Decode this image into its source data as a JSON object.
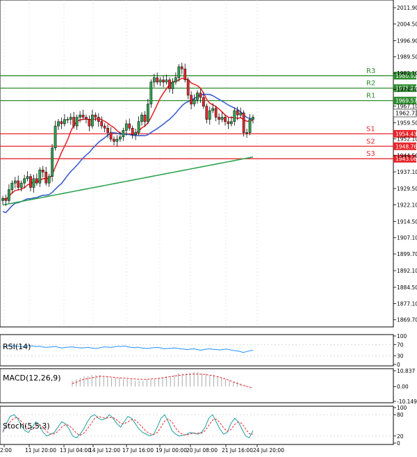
{
  "chart_data": {
    "type": "candlestick",
    "price_axis": {
      "ticks": [
        "2011.90",
        "2004.50",
        "1996.90",
        "1989.50",
        "1982.10",
        "1974.70",
        "1967.10",
        "1959.50",
        "1952.10",
        "1944.50",
        "1937.10",
        "1929.50",
        "1922.10",
        "1914.50",
        "1907.10",
        "1899.70",
        "1892.10",
        "1884.50",
        "1877.10",
        "1869.70"
      ],
      "range": [
        1867.4,
        2013.5
      ]
    },
    "time_axis": {
      "labels": [
        "2:00",
        "11 Jul 20:00",
        "13 Jul 04:00",
        "14 Jul 12:00",
        "17 Jul 16:00",
        "19 Jul 00:00",
        "20 Jul 08:00",
        "21 Jul 16:00",
        "24 Jul 20:00"
      ]
    },
    "current_price": "1962.73",
    "levels": [
      {
        "name": "R3",
        "price": "1980.92",
        "value": 1980.92,
        "color": "#2e8b2e"
      },
      {
        "name": "R2",
        "price": "1975.24",
        "value": 1975.24,
        "color": "#2e8b2e"
      },
      {
        "name": "R1",
        "price": "1969.57",
        "value": 1969.57,
        "color": "#2e8b2e"
      },
      {
        "name": "S1",
        "price": "1954.43",
        "value": 1954.43,
        "color": "#e8262b"
      },
      {
        "name": "S2",
        "price": "1948.76",
        "value": 1948.76,
        "color": "#e8262b"
      },
      {
        "name": "S3",
        "price": "1943.08",
        "value": 1943.08,
        "color": "#e8262b"
      }
    ],
    "closes": [
      1925,
      1924,
      1929,
      1932,
      1933,
      1930,
      1932,
      1934,
      1935,
      1930,
      1934,
      1932,
      1938,
      1937,
      1932,
      1935,
      1948,
      1958,
      1960,
      1959,
      1961,
      1961,
      1962,
      1958,
      1962,
      1963,
      1962,
      1961,
      1958,
      1963,
      1962,
      1960,
      1958,
      1957,
      1955,
      1952,
      1951,
      1952,
      1953,
      1956,
      1959,
      1957,
      1954,
      1955,
      1960,
      1963,
      1960,
      1968,
      1978,
      1980,
      1978,
      1979,
      1978,
      1979,
      1975,
      1978,
      1980,
      1985,
      1984,
      1979,
      1972,
      1968,
      1970,
      1973,
      1971,
      1967,
      1961,
      1965,
      1966,
      1962,
      1961,
      1962,
      1960,
      1959,
      1960,
      1965,
      1963,
      1964,
      1955,
      1955,
      1961,
      1962
    ],
    "indicators": {
      "ma_fast_color": "#e8262b",
      "ma_mid_color": "#3a5ecf",
      "ma_slow_color": "#2ea44f"
    },
    "rsi": {
      "label": "RSI(14)",
      "ticks": [
        "100",
        "70",
        "30",
        "0"
      ],
      "values": [
        62,
        64,
        65,
        66,
        64,
        63,
        62,
        65,
        66,
        65,
        63,
        64,
        62,
        60,
        61,
        62,
        63,
        60,
        58,
        60,
        61,
        62,
        60,
        59,
        58,
        59,
        60,
        58,
        56,
        57,
        60,
        62,
        61,
        60,
        62,
        64,
        63,
        65,
        62,
        60,
        59,
        61,
        58,
        57,
        56,
        58,
        59,
        60,
        58,
        55,
        56,
        57,
        58,
        57,
        55,
        54,
        52,
        54,
        55,
        53,
        50,
        52,
        54,
        55,
        53,
        52,
        51,
        53,
        54,
        52,
        49,
        48,
        46,
        42,
        45,
        48,
        50
      ]
    },
    "macd": {
      "label": "MACD(12,26,9)",
      "ticks": [
        "10.837",
        "0.00",
        "-10.149"
      ],
      "histogram": [
        4,
        5,
        6,
        7,
        7,
        8,
        8,
        8,
        7,
        7,
        6,
        6,
        6,
        5,
        5,
        5,
        4,
        4,
        4,
        5,
        5,
        5,
        6,
        6,
        7,
        7,
        8,
        9,
        9,
        9,
        9,
        10,
        10,
        9,
        9,
        8,
        8,
        7,
        6,
        5,
        4,
        3,
        3,
        2,
        1,
        0.5,
        0
      ],
      "signal": [
        2,
        3,
        4,
        5,
        5.5,
        6,
        6.5,
        7,
        7,
        6.8,
        6.5,
        6.2,
        6,
        5.8,
        5.6,
        5.4,
        5.2,
        5,
        5,
        5,
        5.2,
        5.4,
        5.6,
        6,
        6.4,
        6.8,
        7.2,
        7.6,
        8,
        8.2,
        8.4,
        8.6,
        8.6,
        8.4,
        8.2,
        7.8,
        7.4,
        6.8,
        6,
        5.2,
        4.2,
        3.2,
        2.2,
        1.2,
        0.4,
        -0.4,
        -1
      ]
    },
    "stoch": {
      "label": "Stoch(5,5,3)",
      "ticks": [
        "100",
        "80",
        "20",
        "0"
      ],
      "k": [
        30,
        55,
        75,
        80,
        70,
        50,
        35,
        30,
        45,
        60,
        50,
        30,
        20,
        25,
        30,
        45,
        60,
        55,
        40,
        20,
        15,
        25,
        40,
        60,
        75,
        80,
        70,
        65,
        70,
        80,
        70,
        55,
        45,
        60,
        75,
        70,
        55,
        40,
        30,
        25,
        20,
        25,
        45,
        70,
        80,
        60,
        35,
        25,
        20,
        22,
        25,
        30,
        28,
        25,
        30,
        45,
        70,
        80,
        60,
        40,
        25,
        30,
        55,
        70,
        60,
        40,
        20,
        15,
        35
      ],
      "d": [
        35,
        45,
        60,
        70,
        72,
        62,
        50,
        40,
        38,
        48,
        52,
        45,
        32,
        25,
        26,
        33,
        45,
        52,
        50,
        40,
        28,
        22,
        28,
        40,
        55,
        70,
        75,
        72,
        70,
        72,
        72,
        65,
        56,
        54,
        60,
        66,
        65,
        55,
        44,
        33,
        26,
        24,
        30,
        45,
        62,
        68,
        60,
        42,
        30,
        24,
        23,
        26,
        28,
        28,
        28,
        35,
        50,
        65,
        68,
        58,
        43,
        33,
        38,
        52,
        60,
        55,
        40,
        26,
        25
      ]
    }
  }
}
